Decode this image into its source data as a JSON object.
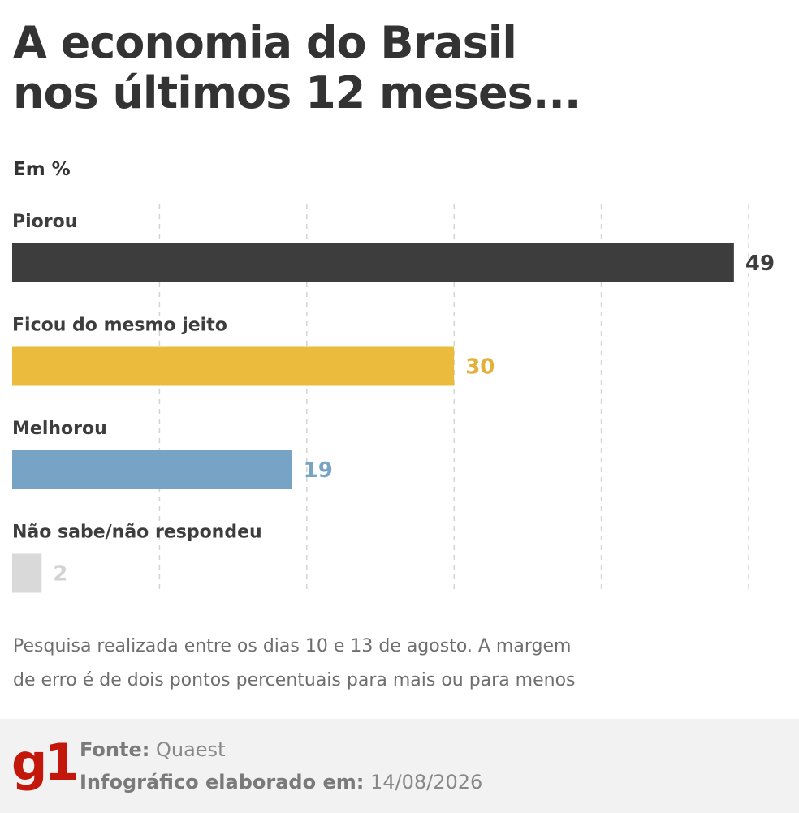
{
  "title_line1": "A economia do Brasil",
  "title_line2": "nos últimos 12 meses...",
  "unit": "Em %",
  "chart_data": {
    "type": "bar",
    "orientation": "horizontal",
    "title": "A economia do Brasil nos últimos 12 meses...",
    "unit": "Em %",
    "categories": [
      "Piorou",
      "Ficou do mesmo jeito",
      "Melhorou",
      "Não sabe/não respondeu"
    ],
    "values": [
      49,
      30,
      19,
      2
    ],
    "colors": [
      "#3d3d3d",
      "#ebbb3d",
      "#77a4c5",
      "#d9d9d9"
    ],
    "value_label_colors": [
      "#3d3d3d",
      "#e0b23a",
      "#77a4c5",
      "#d3d3d3"
    ],
    "xlim": [
      0,
      50
    ],
    "grid": true,
    "grid_values": [
      10,
      20,
      30,
      40,
      50
    ]
  },
  "note_line1": "Pesquisa realizada entre os dias 10 e 13 de agosto. A margem",
  "note_line2": "de erro é de dois pontos percentuais para mais ou para menos",
  "footer": {
    "logo": "g1",
    "logo_color": "#c4170c",
    "source_label": "Fonte:",
    "source_value": "Quaest",
    "date_label": "Infográfico elaborado em:",
    "date_value": "14/08/2026"
  }
}
